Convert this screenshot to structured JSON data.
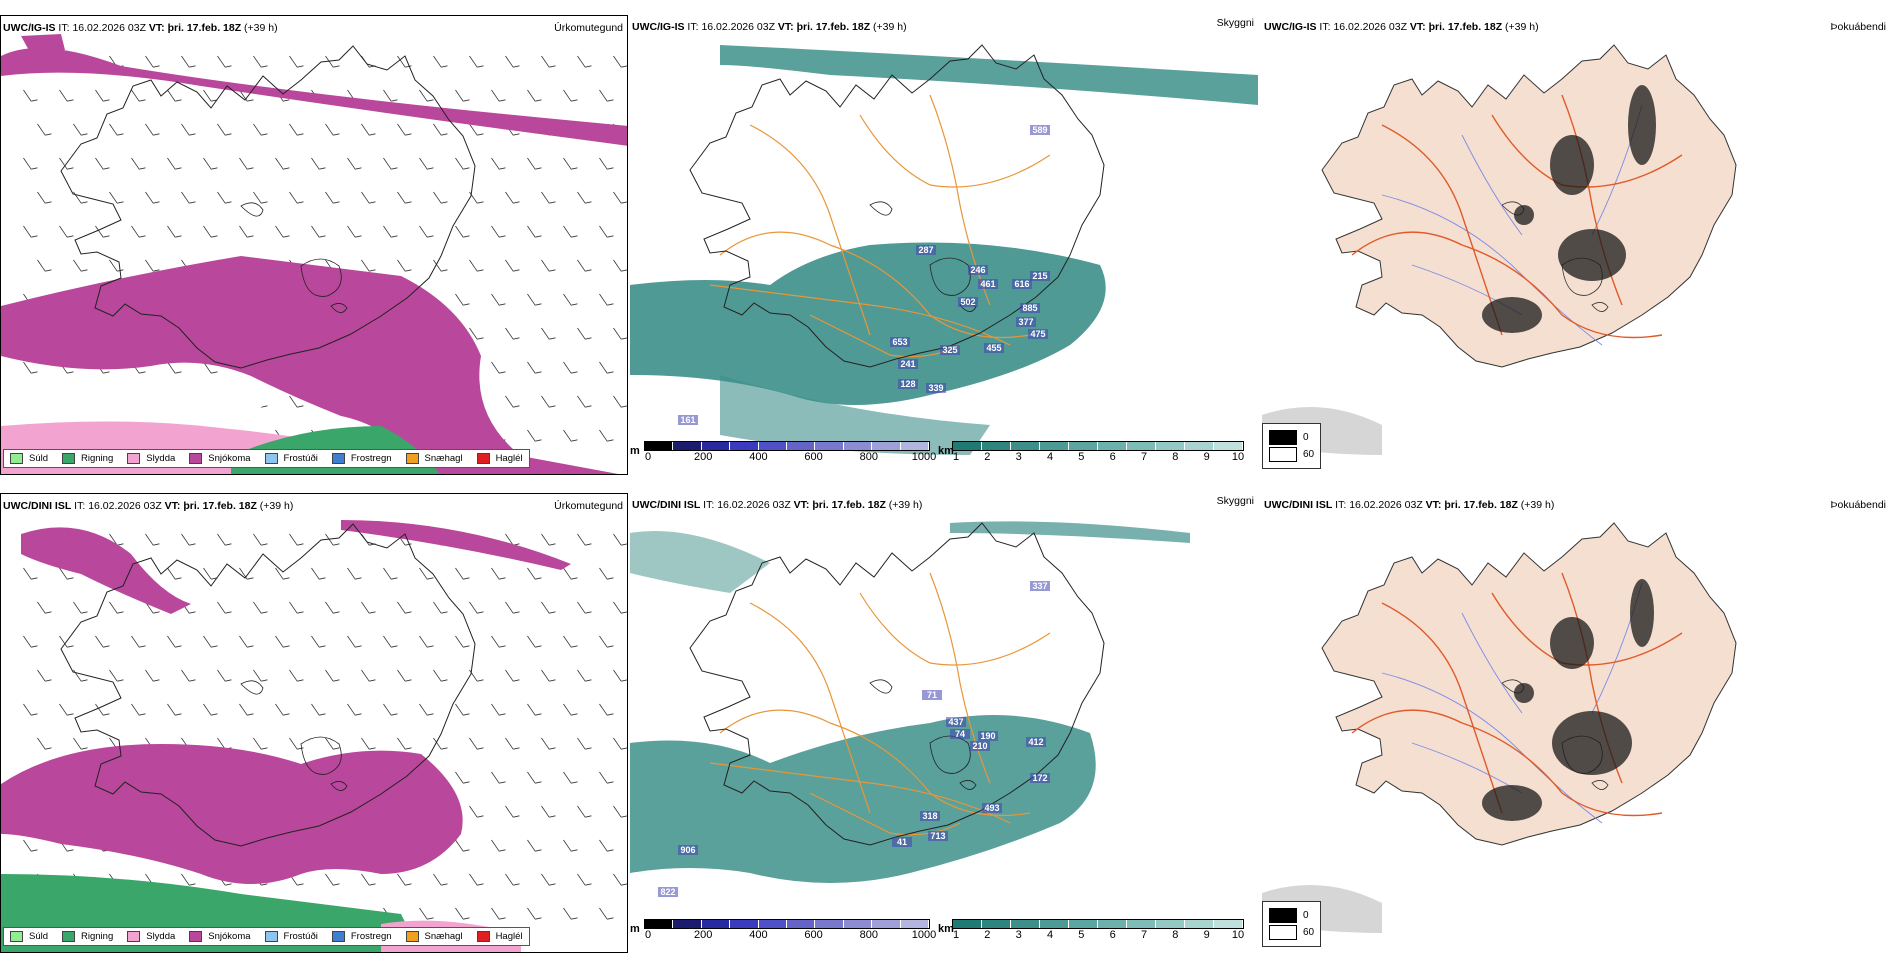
{
  "rows": [
    {
      "model": "UWC/IG-IS",
      "panels": [
        {
          "kind": "precip",
          "model": "UWC/IG-IS",
          "it_label": "IT:",
          "it": "16.02.2026 03Z",
          "vt_label": "VT:",
          "vt": "þri. 17.feb. 18Z",
          "lead": "(+39 h)",
          "param": "Úrkomutegund"
        },
        {
          "kind": "visibility",
          "model": "UWC/IG-IS",
          "it_label": "IT:",
          "it": "16.02.2026 03Z",
          "vt_label": "VT:",
          "vt": "þri. 17.feb. 18Z",
          "lead": "(+39 h)",
          "param": "Skyggni",
          "labels": [
            "589",
            "287",
            "246",
            "461",
            "616",
            "215",
            "502",
            "885",
            "377",
            "475",
            "653",
            "325",
            "455",
            "241",
            "128",
            "339",
            "161"
          ]
        },
        {
          "kind": "fog",
          "model": "UWC/IG-IS",
          "it_label": "IT:",
          "it": "16.02.2026 03Z",
          "vt_label": "VT:",
          "vt": "þri. 17.feb. 18Z",
          "lead": "(+39 h)",
          "param": "Þokuábendi"
        }
      ]
    },
    {
      "model": "UWC/DINI ISL",
      "panels": [
        {
          "kind": "precip",
          "model": "UWC/DINI ISL",
          "it_label": "IT:",
          "it": "16.02.2026 03Z",
          "vt_label": "VT:",
          "vt": "þri. 17.feb. 18Z",
          "lead": "(+39 h)",
          "param": "Úrkomutegund"
        },
        {
          "kind": "visibility",
          "model": "UWC/DINI ISL",
          "it_label": "IT:",
          "it": "16.02.2026 03Z",
          "vt_label": "VT:",
          "vt": "þri. 17.feb. 18Z",
          "lead": "(+39 h)",
          "param": "Skyggni",
          "labels": [
            "337",
            "71",
            "437",
            "74",
            "190",
            "210",
            "412",
            "172",
            "318",
            "493",
            "713",
            "41",
            "906",
            "822"
          ]
        },
        {
          "kind": "fog",
          "model": "UWC/DINI ISL",
          "it_label": "IT:",
          "it": "16.02.2026 03Z",
          "vt_label": "VT:",
          "vt": "þri. 17.feb. 18Z",
          "lead": "(+39 h)",
          "param": "Þokuábendi"
        }
      ]
    }
  ],
  "ptype_legend": [
    {
      "label": "Súld",
      "color": "#90ee90"
    },
    {
      "label": "Rigning",
      "color": "#3aa66a"
    },
    {
      "label": "Slydda",
      "color": "#f2a3cf"
    },
    {
      "label": "Snjókoma",
      "color": "#b9479b"
    },
    {
      "label": "Frostúði",
      "color": "#8ec5ee"
    },
    {
      "label": "Frostregn",
      "color": "#3f7fcf"
    },
    {
      "label": "Snæhagl",
      "color": "#f0a020"
    },
    {
      "label": "Haglél",
      "color": "#e02020"
    }
  ],
  "vis_scale_m": {
    "unit": "m",
    "ticks": [
      "0",
      "200",
      "400",
      "600",
      "800",
      "1000"
    ],
    "colors": [
      "#000000",
      "#1c1c6e",
      "#2a2aa0",
      "#3b3bc0",
      "#5050c8",
      "#6464c8",
      "#7878cc",
      "#8c8cd2",
      "#a0a0d8",
      "#b4b4e0"
    ]
  },
  "vis_scale_km": {
    "unit": "km",
    "ticks": [
      "1",
      "2",
      "3",
      "4",
      "5",
      "6",
      "7",
      "8",
      "9",
      "10"
    ],
    "colors": [
      "#1f7a74",
      "#2e857f",
      "#3d908a",
      "#4c9b95",
      "#5ba6a0",
      "#6cb1ab",
      "#7fbcb7",
      "#93c8c3",
      "#a8d4d0",
      "#bfe0dd"
    ]
  },
  "fog_legend": [
    {
      "label": "0",
      "color": "#000000"
    },
    {
      "label": "60",
      "color": "#ffffff"
    }
  ],
  "colors": {
    "snow": "#b9479b",
    "rain": "#3aa66a",
    "sleet": "#f2a3cf",
    "vis_teal": "#3d8f8a",
    "vis_blue": "#4444b0",
    "roads": "#e8963a",
    "fog_land": "#f5dfd0",
    "fog_roads": "#e05a2a",
    "fog_rivers": "#7a8ce8"
  }
}
